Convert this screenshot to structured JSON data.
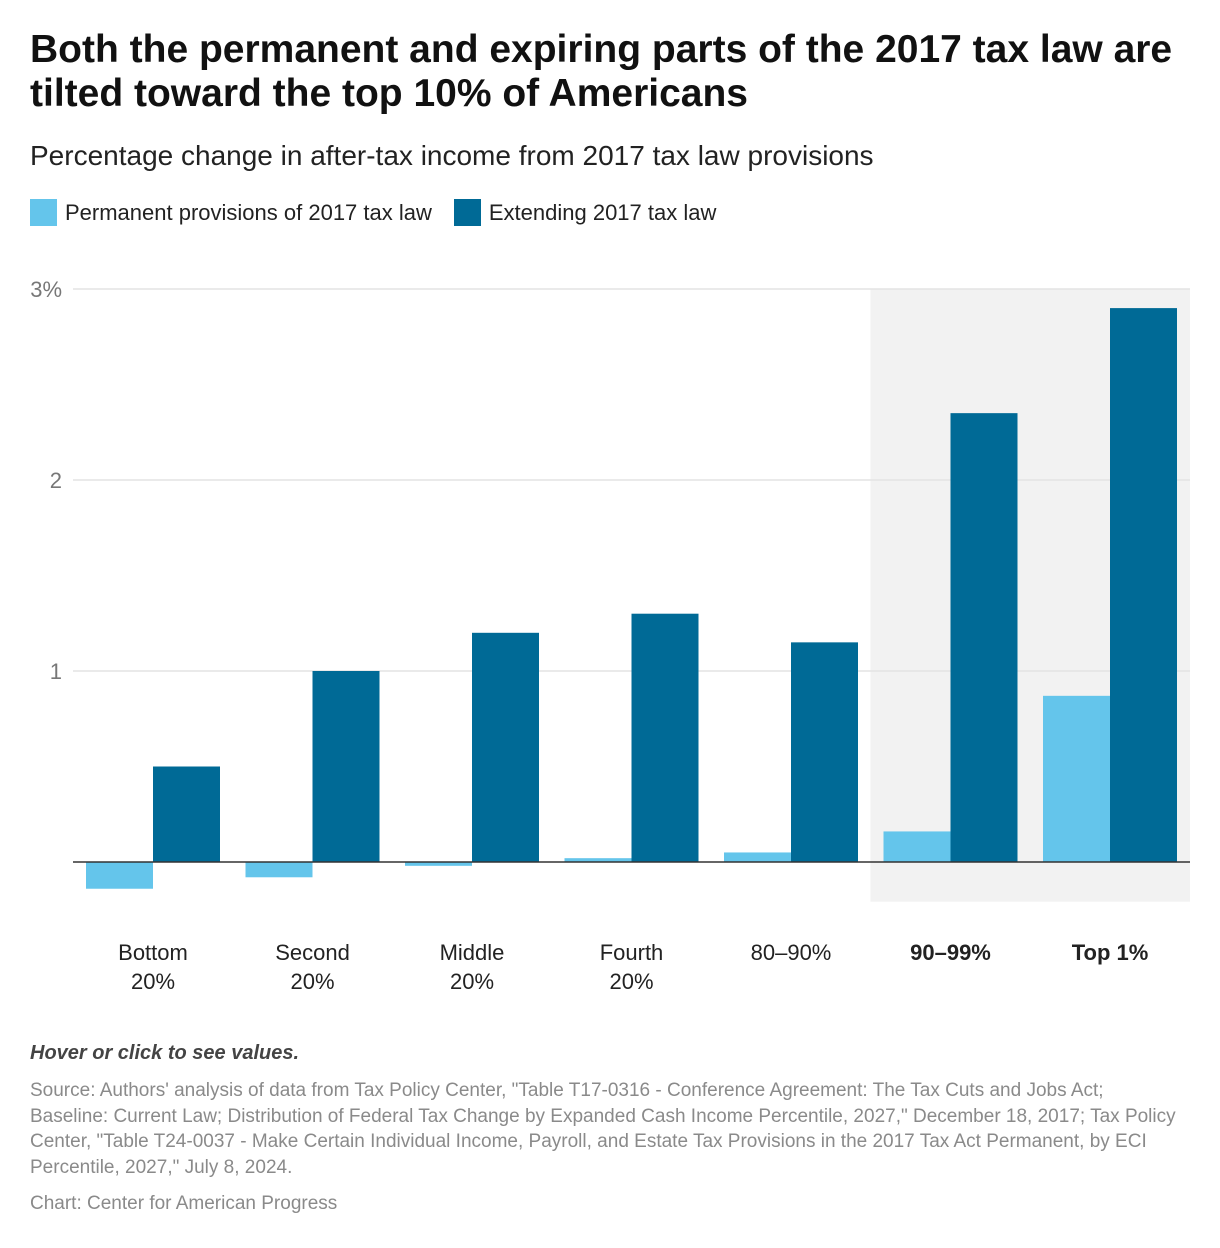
{
  "header": {
    "title": "Both the permanent and expiring parts of the 2017 tax law are tilted toward the top 10% of Americans",
    "subtitle": "Percentage change in after-tax income from 2017 tax law provisions"
  },
  "footer": {
    "note": "Hover or click to see values.",
    "source": "Source: Authors' analysis of data from Tax Policy Center, \"Table T17-0316 - Conference Agreement: The Tax Cuts and Jobs Act; Baseline: Current Law; Distribution of Federal Tax Change by Expanded Cash Income Percentile, 2027,\" December 18, 2017; Tax Policy Center, \"Table T24-0037 - Make Certain Individual Income, Payroll, and Estate Tax Provisions in the 2017 Tax Act Permanent, by ECI Percentile, 2027,\" July 8, 2024.",
    "credit": "Chart: Center for American Progress"
  },
  "chart_data": {
    "type": "bar",
    "title": "Both the permanent and expiring parts of the 2017 tax law are tilted toward the top 10% of Americans",
    "subtitle": "Percentage change in after-tax income from 2017 tax law provisions",
    "categories": [
      [
        "Bottom",
        "20%"
      ],
      [
        "Second",
        "20%"
      ],
      [
        "Middle",
        "20%"
      ],
      [
        "Fourth",
        "20%"
      ],
      [
        "80–90%"
      ],
      [
        "90–99%"
      ],
      [
        "Top 1%"
      ]
    ],
    "highlighted_categories": [
      5,
      6
    ],
    "series": [
      {
        "name": "Permanent provisions of 2017 tax law",
        "color": "#64c5eb",
        "values": [
          -0.14,
          -0.08,
          -0.02,
          0.02,
          0.05,
          0.16,
          0.87
        ]
      },
      {
        "name": "Extending 2017 tax law",
        "color": "#006a96",
        "values": [
          0.5,
          1.0,
          1.2,
          1.3,
          1.15,
          2.35,
          2.9
        ]
      }
    ],
    "y_ticks": [
      {
        "value": 1,
        "label": "1"
      },
      {
        "value": 2,
        "label": "2"
      },
      {
        "value": 3,
        "label": "3%"
      }
    ],
    "ylim": [
      -0.14,
      3.0
    ],
    "grid": true,
    "legend_position": "top-left",
    "highlight_color": "#f2f2f2",
    "gridline_color": "#e3e3e3"
  }
}
